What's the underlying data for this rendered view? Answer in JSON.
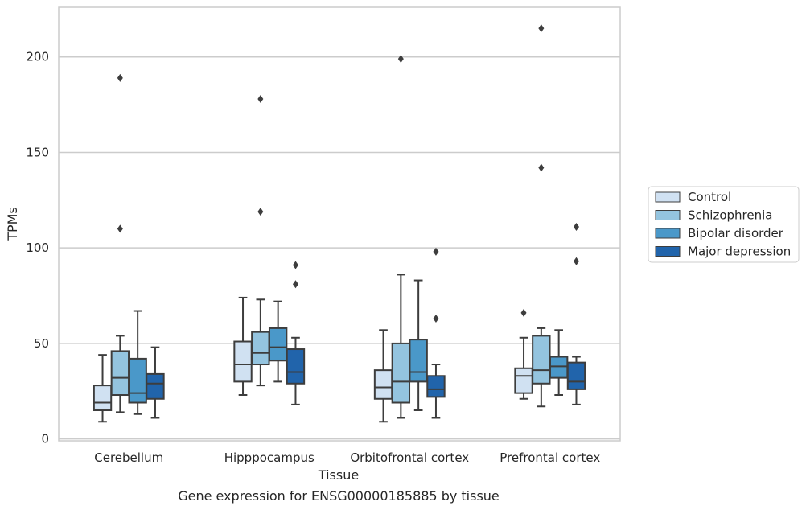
{
  "chart_data": {
    "type": "box",
    "xlabel": "Tissue",
    "ylabel": "TPMs",
    "caption": "Gene expression for ENSG00000185885 by tissue",
    "categories": [
      "Cerebellum",
      "Hipppocampus",
      "Orbitofrontal cortex",
      "Prefrontal cortex"
    ],
    "ylim": [
      -1,
      226
    ],
    "yticks": [
      0,
      50,
      100,
      150,
      200
    ],
    "grid": "horizontal",
    "legend_position": "right",
    "series": [
      {
        "name": "Control",
        "color": "#d0e1f2",
        "boxes": [
          {
            "whisker_low": 9,
            "q1": 15,
            "median": 19,
            "q3": 28,
            "whisker_high": 44,
            "outliers": []
          },
          {
            "whisker_low": 23,
            "q1": 30,
            "median": 39,
            "q3": 51,
            "whisker_high": 74,
            "outliers": []
          },
          {
            "whisker_low": 9,
            "q1": 21,
            "median": 27,
            "q3": 36,
            "whisker_high": 57,
            "outliers": []
          },
          {
            "whisker_low": 21,
            "q1": 24,
            "median": 33,
            "q3": 37,
            "whisker_high": 53,
            "outliers": [
              66
            ]
          }
        ]
      },
      {
        "name": "Schizophrenia",
        "color": "#94c4df",
        "boxes": [
          {
            "whisker_low": 14,
            "q1": 23,
            "median": 32,
            "q3": 46,
            "whisker_high": 54,
            "outliers": [
              110,
              189
            ]
          },
          {
            "whisker_low": 28,
            "q1": 39,
            "median": 45,
            "q3": 56,
            "whisker_high": 73,
            "outliers": [
              119,
              178
            ]
          },
          {
            "whisker_low": 11,
            "q1": 19,
            "median": 30,
            "q3": 50,
            "whisker_high": 86,
            "outliers": [
              199
            ]
          },
          {
            "whisker_low": 17,
            "q1": 29,
            "median": 36,
            "q3": 54,
            "whisker_high": 58,
            "outliers": [
              142,
              215
            ]
          }
        ]
      },
      {
        "name": "Bipolar disorder",
        "color": "#4a98c9",
        "boxes": [
          {
            "whisker_low": 13,
            "q1": 19,
            "median": 24,
            "q3": 42,
            "whisker_high": 67,
            "outliers": []
          },
          {
            "whisker_low": 30,
            "q1": 41,
            "median": 48,
            "q3": 58,
            "whisker_high": 72,
            "outliers": []
          },
          {
            "whisker_low": 15,
            "q1": 30,
            "median": 35,
            "q3": 52,
            "whisker_high": 83,
            "outliers": []
          },
          {
            "whisker_low": 23,
            "q1": 32,
            "median": 38,
            "q3": 43,
            "whisker_high": 57,
            "outliers": []
          }
        ]
      },
      {
        "name": "Major depression",
        "color": "#2164ab",
        "boxes": [
          {
            "whisker_low": 11,
            "q1": 21,
            "median": 29,
            "q3": 34,
            "whisker_high": 48,
            "outliers": []
          },
          {
            "whisker_low": 18,
            "q1": 29,
            "median": 35,
            "q3": 47,
            "whisker_high": 53,
            "outliers": [
              81,
              91
            ]
          },
          {
            "whisker_low": 11,
            "q1": 22,
            "median": 26,
            "q3": 33,
            "whisker_high": 39,
            "outliers": [
              63,
              98
            ]
          },
          {
            "whisker_low": 18,
            "q1": 26,
            "median": 30,
            "q3": 40,
            "whisker_high": 43,
            "outliers": [
              93,
              111
            ]
          }
        ]
      }
    ]
  }
}
